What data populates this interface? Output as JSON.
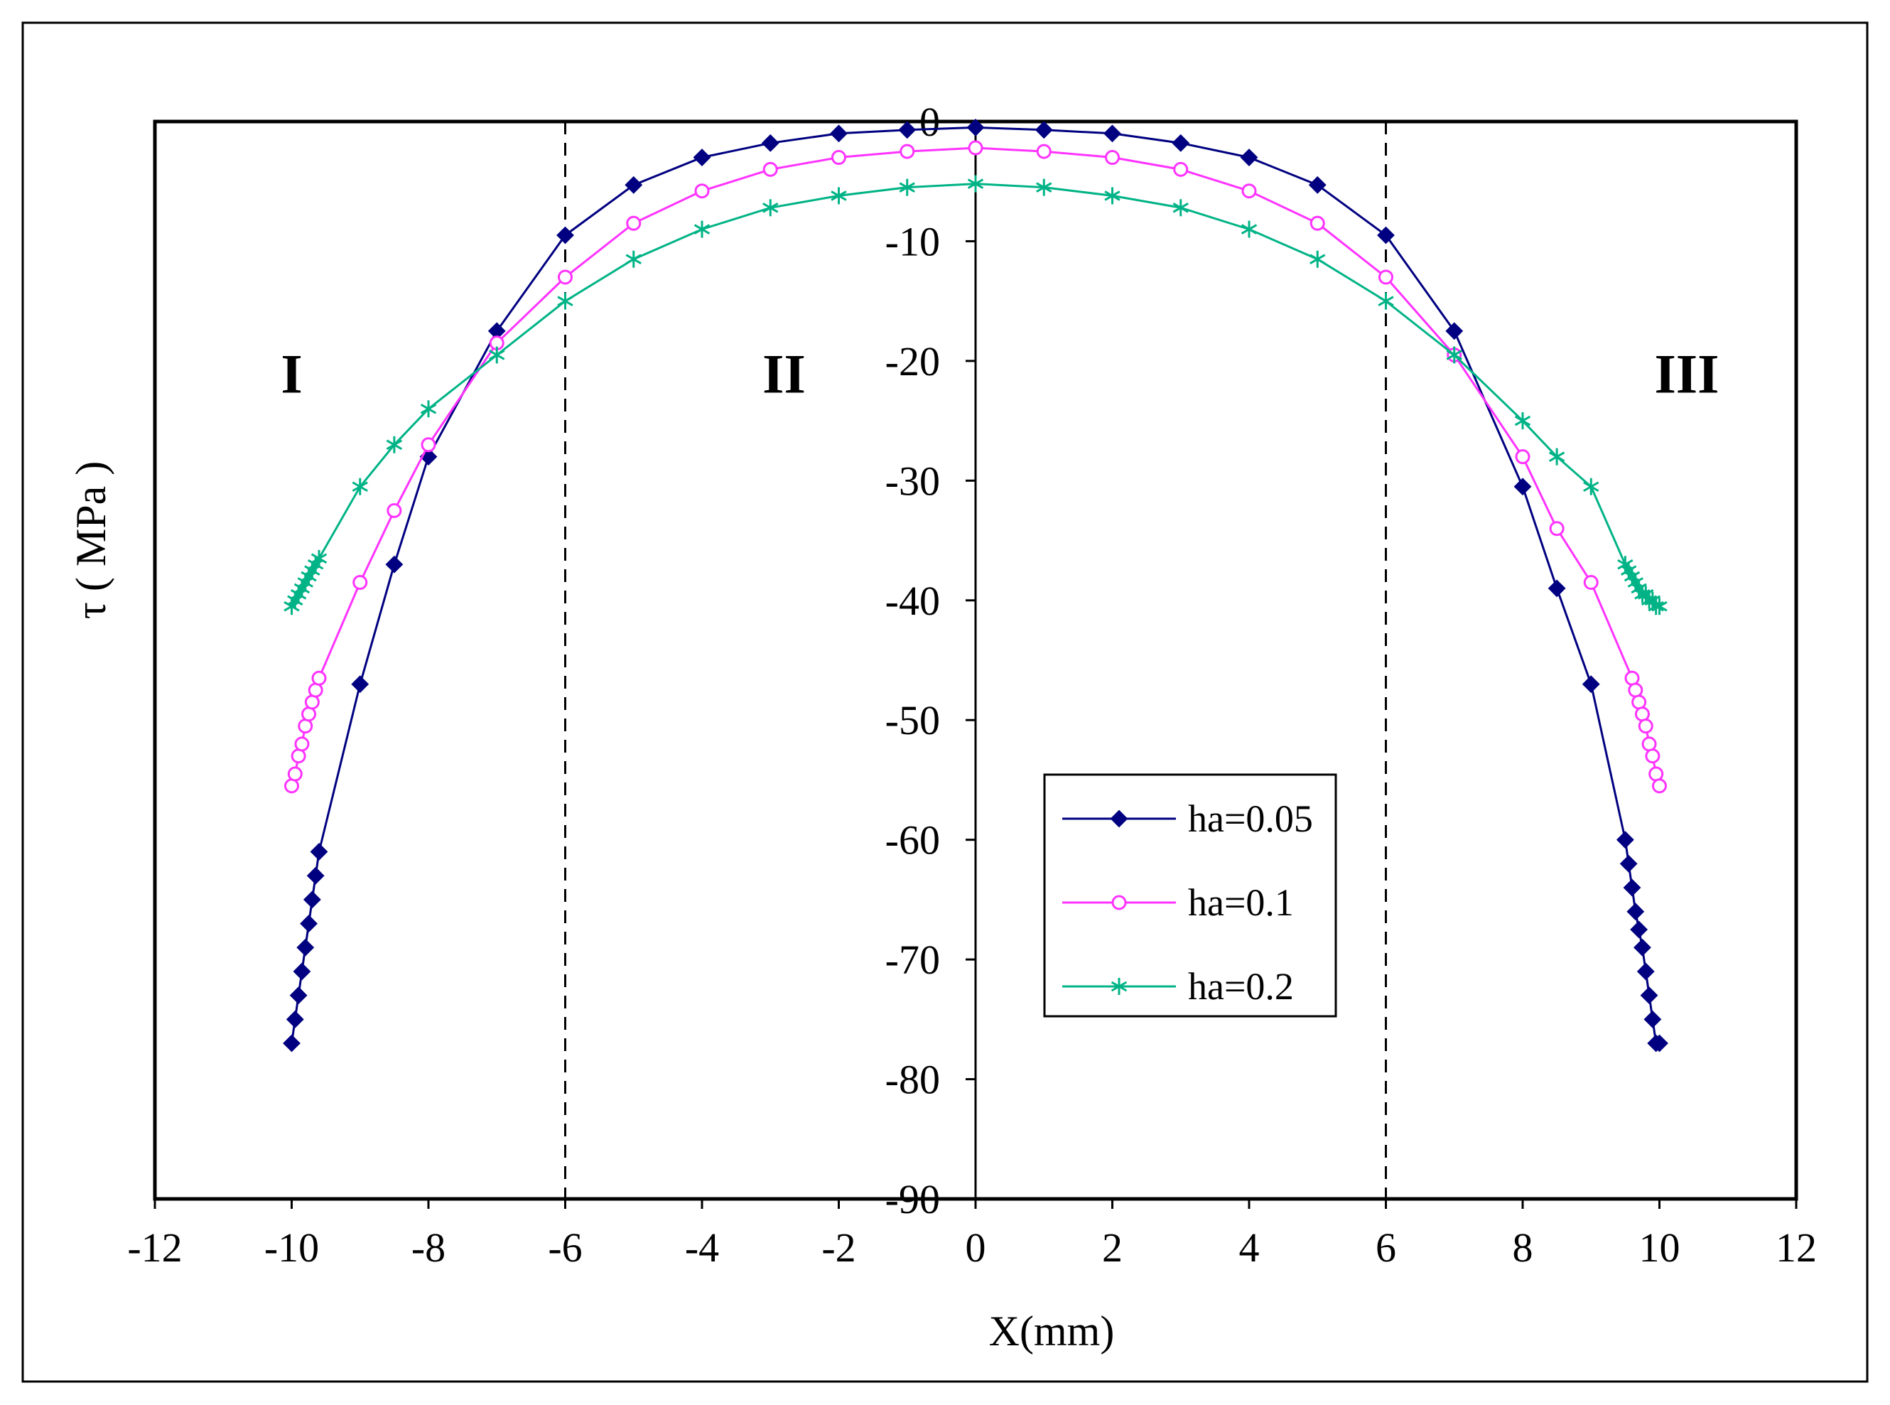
{
  "chart_data": {
    "type": "line",
    "title": "",
    "xlabel": "X(mm)",
    "ylabel": "τ ( MPa )",
    "xlim": [
      -12,
      12
    ],
    "ylim": [
      -90,
      0
    ],
    "xticks": [
      "-12",
      "-10",
      "-8",
      "-6",
      "-4",
      "-2",
      "0",
      "2",
      "4",
      "6",
      "8",
      "10",
      "12"
    ],
    "yticks": [
      "0",
      "-10",
      "-20",
      "-30",
      "-40",
      "-50",
      "-60",
      "-70",
      "-80",
      "-90"
    ],
    "region_labels": [
      "I",
      "II",
      "III"
    ],
    "region_positions": [
      -10,
      -2.8,
      10.4
    ],
    "region_y": -21,
    "dashed_lines_x": [
      -6,
      6
    ],
    "legend_position": "center-right",
    "series": [
      {
        "name": "ha=0.05",
        "color": "#000080",
        "marker": "diamond",
        "x": [
          -10,
          -9.95,
          -9.9,
          -9.85,
          -9.8,
          -9.75,
          -9.7,
          -9.65,
          -9.6,
          -9,
          -8.5,
          -8,
          -7,
          -6,
          -5,
          -4,
          -3,
          -2,
          -1,
          0,
          1,
          2,
          3,
          4,
          5,
          6,
          7,
          8,
          8.5,
          9,
          9.5,
          9.55,
          9.6,
          9.65,
          9.7,
          9.75,
          9.8,
          9.85,
          9.9,
          9.95,
          10
        ],
        "y": [
          -77,
          -75,
          -73,
          -71,
          -69,
          -67,
          -65,
          -63,
          -61,
          -47,
          -37,
          -28,
          -17.5,
          -9.5,
          -5.3,
          -3,
          -1.8,
          -1,
          -0.7,
          -0.5,
          -0.7,
          -1,
          -1.8,
          -3,
          -5.3,
          -9.5,
          -17.5,
          -30.5,
          -39,
          -47,
          -60,
          -62,
          -64,
          -66,
          -67.5,
          -69,
          -71,
          -73,
          -75,
          -77,
          -77
        ]
      },
      {
        "name": "ha=0.1",
        "color": "#ff33ff",
        "marker": "circle",
        "x": [
          -10,
          -9.95,
          -9.9,
          -9.85,
          -9.8,
          -9.75,
          -9.7,
          -9.65,
          -9.6,
          -9,
          -8.5,
          -8,
          -7,
          -6,
          -5,
          -4,
          -3,
          -2,
          -1,
          0,
          1,
          2,
          3,
          4,
          5,
          6,
          7,
          8,
          8.5,
          9,
          9.6,
          9.65,
          9.7,
          9.75,
          9.8,
          9.85,
          9.9,
          9.95,
          10
        ],
        "y": [
          -55.5,
          -54.5,
          -53,
          -52,
          -50.5,
          -49.5,
          -48.5,
          -47.5,
          -46.5,
          -38.5,
          -32.5,
          -27,
          -18.5,
          -13,
          -8.5,
          -5.8,
          -4,
          -3,
          -2.5,
          -2.2,
          -2.5,
          -3,
          -4,
          -5.8,
          -8.5,
          -13,
          -19.5,
          -28,
          -34,
          -38.5,
          -46.5,
          -47.5,
          -48.5,
          -49.5,
          -50.5,
          -52,
          -53,
          -54.5,
          -55.5
        ]
      },
      {
        "name": "ha=0.2",
        "color": "#00b386",
        "marker": "asterisk",
        "x": [
          -10,
          -9.95,
          -9.9,
          -9.85,
          -9.8,
          -9.75,
          -9.7,
          -9.65,
          -9.6,
          -9,
          -8.5,
          -8,
          -7,
          -6,
          -5,
          -4,
          -3,
          -2,
          -1,
          0,
          1,
          2,
          3,
          4,
          5,
          6,
          7,
          8,
          8.5,
          9,
          9.5,
          9.55,
          9.6,
          9.65,
          9.7,
          9.75,
          9.8,
          9.85,
          9.9,
          9.95,
          10
        ],
        "y": [
          -40.5,
          -40,
          -39.5,
          -39,
          -38.5,
          -38,
          -37.5,
          -37,
          -36.5,
          -30.5,
          -27,
          -24,
          -19.5,
          -15,
          -11.5,
          -9,
          -7.2,
          -6.2,
          -5.5,
          -5.2,
          -5.5,
          -6.2,
          -7.2,
          -9,
          -11.5,
          -15,
          -19.5,
          -25,
          -28,
          -30.5,
          -37,
          -37.5,
          -38,
          -38.5,
          -39,
          -39.5,
          -39.5,
          -40,
          -40,
          -40.5,
          -40.5
        ]
      }
    ]
  }
}
